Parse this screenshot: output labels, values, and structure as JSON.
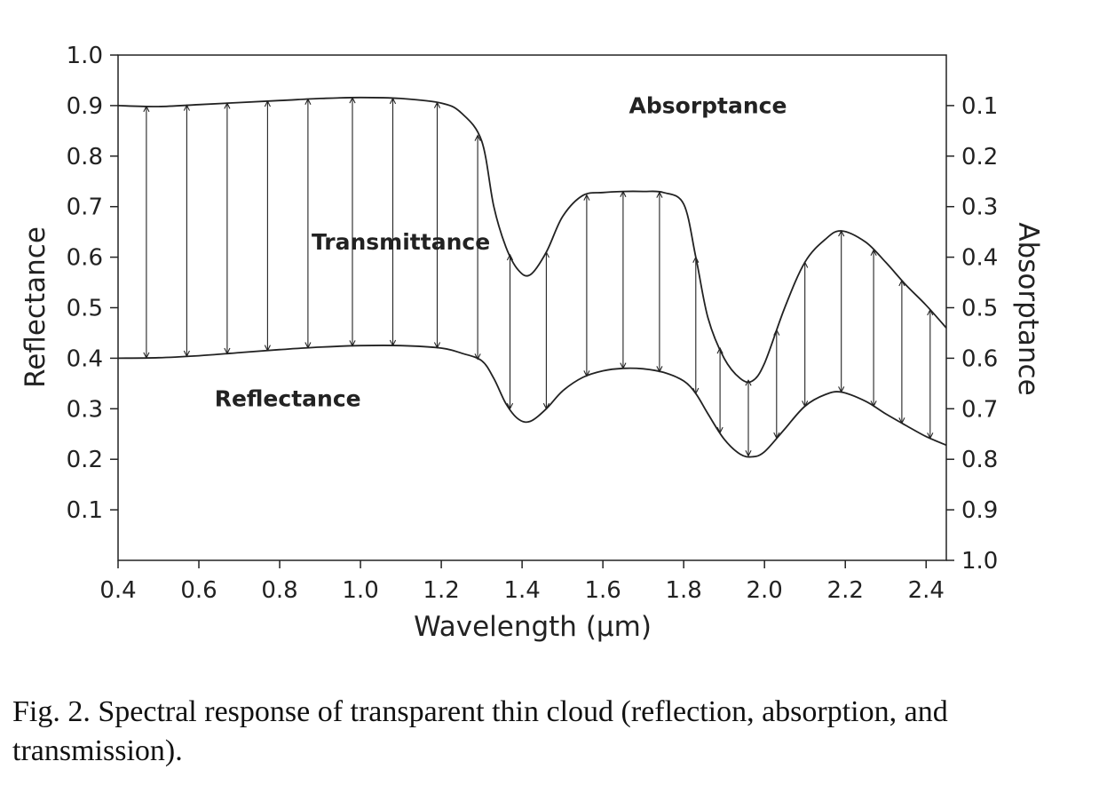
{
  "caption": "Fig. 2.  Spectral response of transparent thin cloud (reflection, absorption, and transmission).",
  "chart_data": {
    "type": "line",
    "xlabel": "Wavelength (μm)",
    "ylabel": "Reflectance",
    "y2label": "Absorptance",
    "xlim": [
      0.4,
      2.45
    ],
    "ylim": [
      0,
      1.0
    ],
    "y2lim_inverted": [
      1.0,
      0.0
    ],
    "xticks": [
      0.4,
      0.6,
      0.8,
      1.0,
      1.2,
      1.4,
      1.6,
      1.8,
      2.0,
      2.2,
      2.4
    ],
    "xtick_labels": [
      "0.4",
      "0.6",
      "0.8",
      "1.0",
      "1.2",
      "1.4",
      "1.6",
      "1.8",
      "2.0",
      "2.2",
      "2.4"
    ],
    "yticks": [
      0.1,
      0.2,
      0.3,
      0.4,
      0.5,
      0.6,
      0.7,
      0.8,
      0.9,
      1.0
    ],
    "ytick_labels": [
      "0.1",
      "0.2",
      "0.3",
      "0.4",
      "0.5",
      "0.6",
      "0.7",
      "0.8",
      "0.9",
      "1.0"
    ],
    "y2ticks": [
      0.1,
      0.2,
      0.3,
      0.4,
      0.5,
      0.6,
      0.7,
      0.8,
      0.9,
      1.0
    ],
    "y2tick_labels": [
      "0.1",
      "0.2",
      "0.3",
      "0.4",
      "0.5",
      "0.6",
      "0.7",
      "0.8",
      "0.9",
      "1.0"
    ],
    "grid": false,
    "series": [
      {
        "x": [
          0.4,
          0.5,
          0.6,
          0.7,
          0.8,
          0.9,
          1.0,
          1.1,
          1.2,
          1.25,
          1.3,
          1.33,
          1.36,
          1.39,
          1.42,
          1.46,
          1.5,
          1.55,
          1.6,
          1.65,
          1.7,
          1.75,
          1.8,
          1.83,
          1.86,
          1.9,
          1.94,
          1.97,
          2.0,
          2.05,
          2.1,
          2.15,
          2.19,
          2.25,
          2.3,
          2.35,
          2.4,
          2.45
        ],
        "values": [
          0.9,
          0.898,
          0.902,
          0.906,
          0.91,
          0.914,
          0.916,
          0.914,
          0.905,
          0.885,
          0.83,
          0.7,
          0.62,
          0.575,
          0.565,
          0.61,
          0.68,
          0.722,
          0.728,
          0.73,
          0.73,
          0.728,
          0.705,
          0.6,
          0.48,
          0.4,
          0.36,
          0.355,
          0.39,
          0.5,
          0.59,
          0.635,
          0.652,
          0.63,
          0.59,
          0.545,
          0.505,
          0.46
        ]
      },
      {
        "x": [
          0.4,
          0.5,
          0.6,
          0.7,
          0.8,
          0.9,
          1.0,
          1.1,
          1.2,
          1.25,
          1.3,
          1.33,
          1.36,
          1.39,
          1.42,
          1.46,
          1.5,
          1.55,
          1.6,
          1.65,
          1.7,
          1.75,
          1.8,
          1.83,
          1.86,
          1.9,
          1.94,
          1.97,
          2.0,
          2.05,
          2.1,
          2.15,
          2.19,
          2.25,
          2.3,
          2.35,
          2.4,
          2.45
        ],
        "values": [
          0.4,
          0.401,
          0.405,
          0.411,
          0.417,
          0.422,
          0.425,
          0.425,
          0.42,
          0.41,
          0.395,
          0.36,
          0.31,
          0.28,
          0.275,
          0.3,
          0.335,
          0.362,
          0.375,
          0.38,
          0.379,
          0.372,
          0.355,
          0.33,
          0.29,
          0.24,
          0.21,
          0.205,
          0.215,
          0.26,
          0.305,
          0.328,
          0.333,
          0.315,
          0.29,
          0.267,
          0.245,
          0.228
        ]
      }
    ],
    "arrows_x": [
      0.47,
      0.57,
      0.67,
      0.77,
      0.87,
      0.98,
      1.08,
      1.19,
      1.29,
      1.37,
      1.46,
      1.56,
      1.65,
      1.74,
      1.83,
      1.89,
      1.96,
      2.03,
      2.1,
      2.19,
      2.27,
      2.34,
      2.41
    ],
    "annotations": [
      {
        "text": "Absorptance",
        "x": 1.86,
        "y": 0.885
      },
      {
        "text": "Transmittance",
        "x": 1.1,
        "y": 0.615
      },
      {
        "text": "Reflectance",
        "x": 0.82,
        "y": 0.305
      }
    ]
  }
}
